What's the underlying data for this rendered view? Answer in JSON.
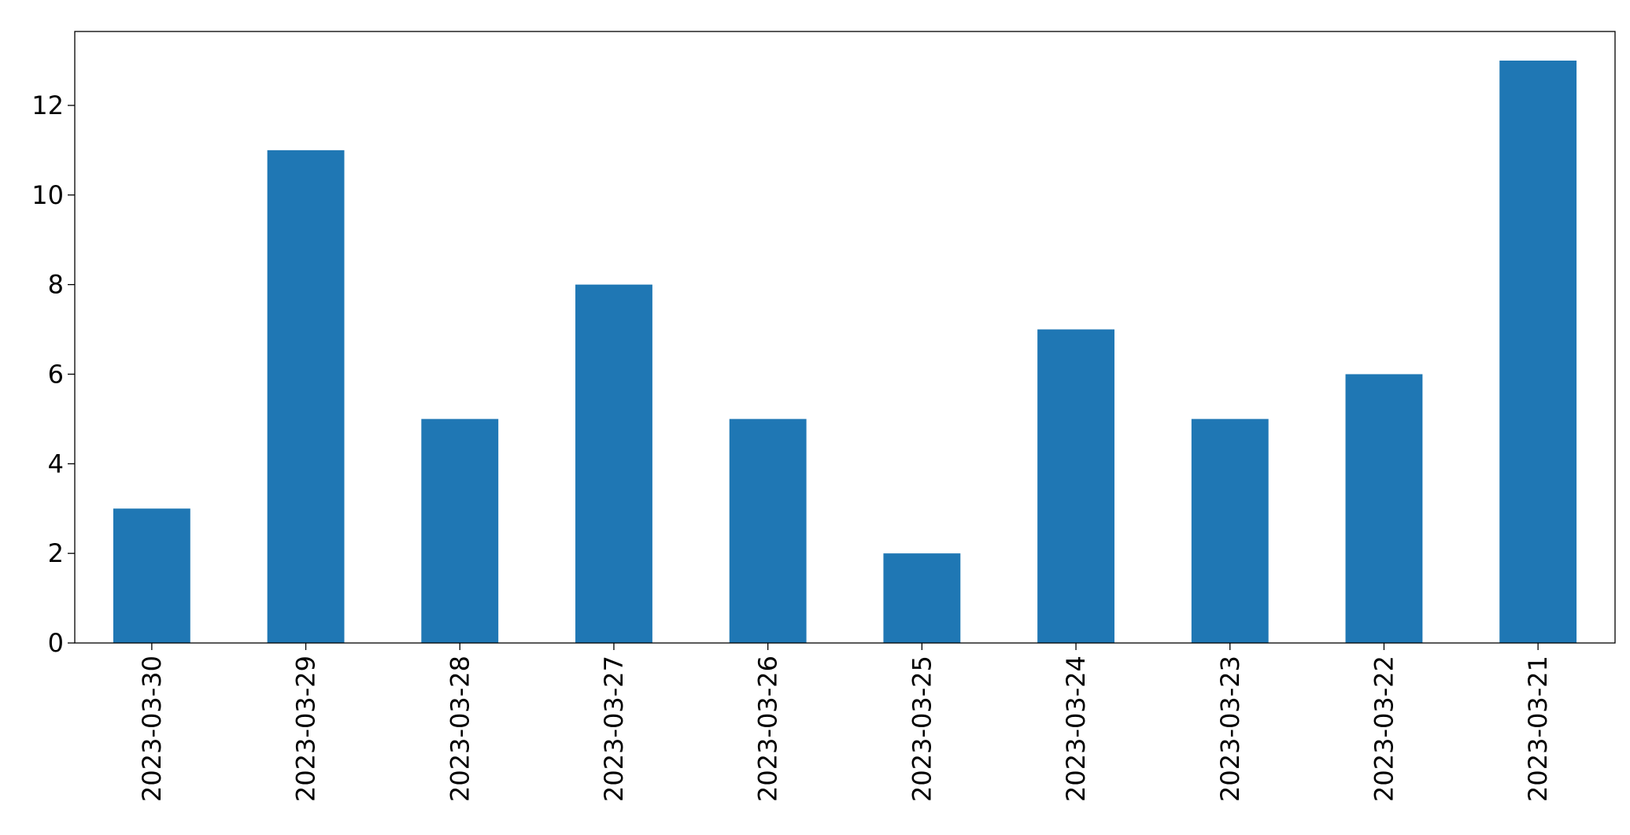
{
  "chart_data": {
    "type": "bar",
    "categories": [
      "2023-03-30",
      "2023-03-29",
      "2023-03-28",
      "2023-03-27",
      "2023-03-26",
      "2023-03-25",
      "2023-03-24",
      "2023-03-23",
      "2023-03-22",
      "2023-03-21"
    ],
    "values": [
      3,
      11,
      5,
      8,
      5,
      2,
      7,
      5,
      6,
      13
    ],
    "color": "#1f77b4",
    "ylim": [
      0,
      13.65
    ],
    "yticks": [
      0,
      2,
      4,
      6,
      8,
      10,
      12
    ],
    "grid": false
  }
}
